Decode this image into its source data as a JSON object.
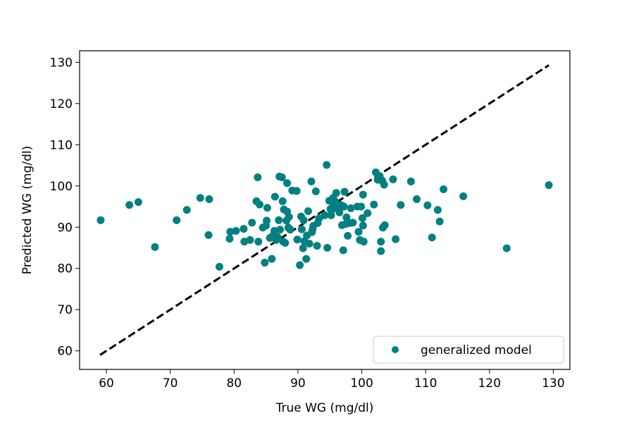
{
  "chart_data": {
    "type": "scatter",
    "title": "",
    "xlabel": "True WG (mg/dl)",
    "ylabel": "Predicted WG (mg/dl)",
    "xlim": [
      55.8,
      132.6
    ],
    "ylim": [
      55.5,
      132.8
    ],
    "xticks": [
      60,
      70,
      80,
      90,
      100,
      110,
      120,
      130
    ],
    "yticks": [
      60,
      70,
      80,
      90,
      100,
      110,
      120,
      130
    ],
    "grid": false,
    "legend_position": "lower-right",
    "reference_line": {
      "style": "dashed",
      "color": "#000000",
      "x": [
        59,
        129.3
      ],
      "y": [
        59,
        129.3
      ]
    },
    "series": [
      {
        "name": "generalized model",
        "color": "#008080",
        "points": [
          [
            59.1,
            91.7
          ],
          [
            63.6,
            95.4
          ],
          [
            65.0,
            96.1
          ],
          [
            67.6,
            85.2
          ],
          [
            71.0,
            91.7
          ],
          [
            72.6,
            94.2
          ],
          [
            74.7,
            97.1
          ],
          [
            76.0,
            88.1
          ],
          [
            76.1,
            96.8
          ],
          [
            77.7,
            80.4
          ],
          [
            79.3,
            87.2
          ],
          [
            79.4,
            88.9
          ],
          [
            80.3,
            89.1
          ],
          [
            81.5,
            89.6
          ],
          [
            81.6,
            86.5
          ],
          [
            82.5,
            86.9
          ],
          [
            82.8,
            91.1
          ],
          [
            83.5,
            96.3
          ],
          [
            83.7,
            102.1
          ],
          [
            83.8,
            86.5
          ],
          [
            84.0,
            95.5
          ],
          [
            84.5,
            89.9
          ],
          [
            84.8,
            81.4
          ],
          [
            85.0,
            90.4
          ],
          [
            85.1,
            91.6
          ],
          [
            85.2,
            94.7
          ],
          [
            85.6,
            87.4
          ],
          [
            85.9,
            82.3
          ],
          [
            86.0,
            87.8
          ],
          [
            86.3,
            89.1
          ],
          [
            86.4,
            97.4
          ],
          [
            86.6,
            86.9
          ],
          [
            86.8,
            87.6
          ],
          [
            87.0,
            91.7
          ],
          [
            87.1,
            102.3
          ],
          [
            87.2,
            89.4
          ],
          [
            87.5,
            102.1
          ],
          [
            87.6,
            96.3
          ],
          [
            87.7,
            86.5
          ],
          [
            87.8,
            94.3
          ],
          [
            88.0,
            86.2
          ],
          [
            88.2,
            91.6
          ],
          [
            88.3,
            100.7
          ],
          [
            88.3,
            93.8
          ],
          [
            88.5,
            89.9
          ],
          [
            88.6,
            92.5
          ],
          [
            88.8,
            89.4
          ],
          [
            89.1,
            98.9
          ],
          [
            89.8,
            98.8
          ],
          [
            89.9,
            87.0
          ],
          [
            90.3,
            80.8
          ],
          [
            90.5,
            92.6
          ],
          [
            90.6,
            89.5
          ],
          [
            90.8,
            84.9
          ],
          [
            90.9,
            91.7
          ],
          [
            91.0,
            86.6
          ],
          [
            91.3,
            82.3
          ],
          [
            91.4,
            88.0
          ],
          [
            91.6,
            93.9
          ],
          [
            91.8,
            86.0
          ],
          [
            92.1,
            101.1
          ],
          [
            92.2,
            88.8
          ],
          [
            92.3,
            89.5
          ],
          [
            92.4,
            90.3
          ],
          [
            92.8,
            98.7
          ],
          [
            93.0,
            85.5
          ],
          [
            93.1,
            91.0
          ],
          [
            93.3,
            92.1
          ],
          [
            94.2,
            92.9
          ],
          [
            94.5,
            105.1
          ],
          [
            94.6,
            85.0
          ],
          [
            94.9,
            96.4
          ],
          [
            95.1,
            94.4
          ],
          [
            95.2,
            92.9
          ],
          [
            95.3,
            94.2
          ],
          [
            95.5,
            97.1
          ],
          [
            95.6,
            95.6
          ],
          [
            95.8,
            96.3
          ],
          [
            96.0,
            98.3
          ],
          [
            96.3,
            94.4
          ],
          [
            96.5,
            93.6
          ],
          [
            96.7,
            95.4
          ],
          [
            96.9,
            90.5
          ],
          [
            97.1,
            84.4
          ],
          [
            97.2,
            95.0
          ],
          [
            97.3,
            98.6
          ],
          [
            97.5,
            90.8
          ],
          [
            97.6,
            92.4
          ],
          [
            97.8,
            87.9
          ],
          [
            98.1,
            91.0
          ],
          [
            98.3,
            94.6
          ],
          [
            98.6,
            91.1
          ],
          [
            99.3,
            95.0
          ],
          [
            99.5,
            88.9
          ],
          [
            99.7,
            86.9
          ],
          [
            99.9,
            95.0
          ],
          [
            100.1,
            92.2
          ],
          [
            100.2,
            97.9
          ],
          [
            100.2,
            90.4
          ],
          [
            100.3,
            86.5
          ],
          [
            100.9,
            93.4
          ],
          [
            101.9,
            95.5
          ],
          [
            102.2,
            103.3
          ],
          [
            102.5,
            101.5
          ],
          [
            102.8,
            102.4
          ],
          [
            103.0,
            86.5
          ],
          [
            103.0,
            84.2
          ],
          [
            103.2,
            101.3
          ],
          [
            103.3,
            89.9
          ],
          [
            103.5,
            100.3
          ],
          [
            103.6,
            90.5
          ],
          [
            104.9,
            101.6
          ],
          [
            105.3,
            87.1
          ],
          [
            106.1,
            95.4
          ],
          [
            107.7,
            101.1
          ],
          [
            108.6,
            96.8
          ],
          [
            110.3,
            95.3
          ],
          [
            111.0,
            87.5
          ],
          [
            111.9,
            94.2
          ],
          [
            112.2,
            91.4
          ],
          [
            112.8,
            99.2
          ],
          [
            115.9,
            97.5
          ],
          [
            122.7,
            84.9
          ],
          [
            129.3,
            100.2
          ]
        ]
      }
    ]
  }
}
